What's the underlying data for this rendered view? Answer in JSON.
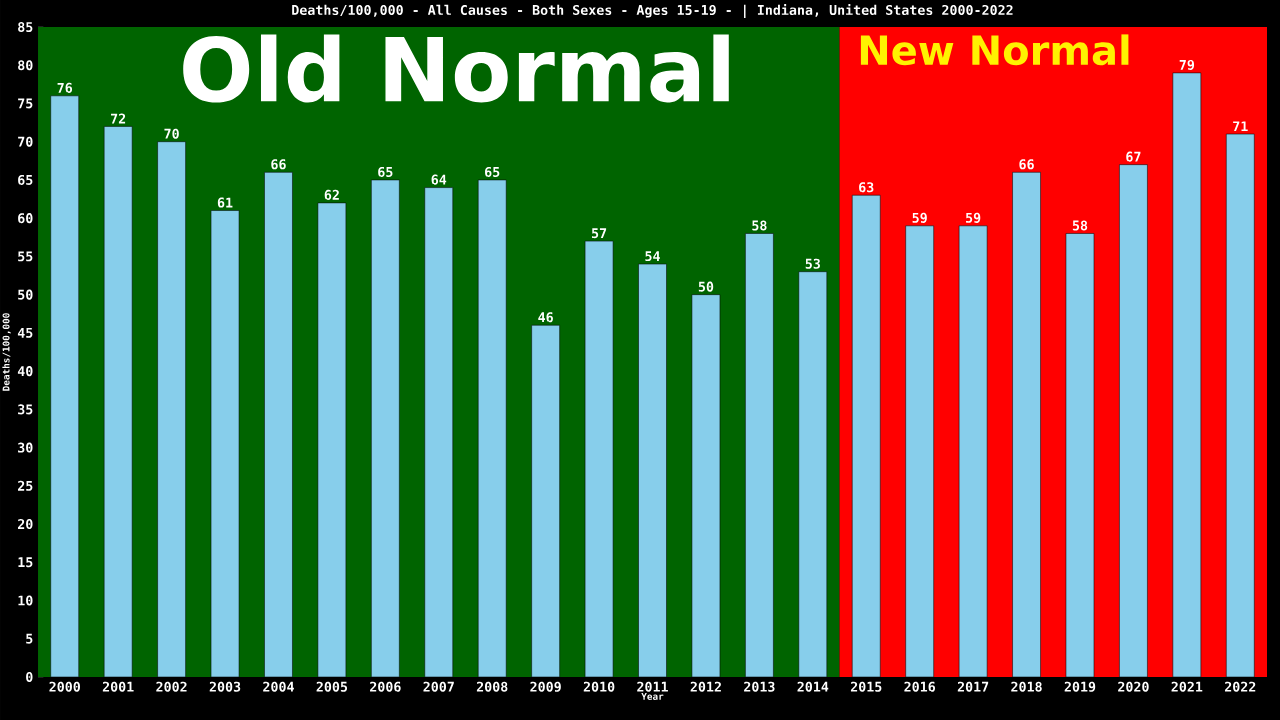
{
  "chart_data": {
    "type": "bar",
    "title": "Deaths/100,000 - All Causes - Both Sexes - Ages 15-19 -  | Indiana, United States 2000-2022",
    "xlabel": "Year",
    "ylabel": "Deaths/100,000",
    "categories": [
      "2000",
      "2001",
      "2002",
      "2003",
      "2004",
      "2005",
      "2006",
      "2007",
      "2008",
      "2009",
      "2010",
      "2011",
      "2012",
      "2013",
      "2014",
      "2015",
      "2016",
      "2017",
      "2018",
      "2019",
      "2020",
      "2021",
      "2022"
    ],
    "values": [
      76,
      72,
      70,
      61,
      66,
      62,
      65,
      64,
      65,
      46,
      57,
      54,
      50,
      58,
      53,
      63,
      59,
      59,
      66,
      58,
      67,
      79,
      71
    ],
    "color": "#87ceeb",
    "ylim": [
      0,
      85
    ],
    "yticks": [
      0,
      5,
      10,
      15,
      20,
      25,
      30,
      35,
      40,
      45,
      50,
      55,
      60,
      65,
      70,
      75,
      80,
      85
    ],
    "data_labels": true,
    "grid": false,
    "bands": [
      {
        "axis": "x",
        "from": "2000",
        "to": "2014",
        "label": "Old Normal",
        "color": "#006400"
      },
      {
        "axis": "x",
        "from": "2015",
        "to": "2022",
        "label": "New Normal",
        "color": "#ff0000"
      }
    ]
  }
}
